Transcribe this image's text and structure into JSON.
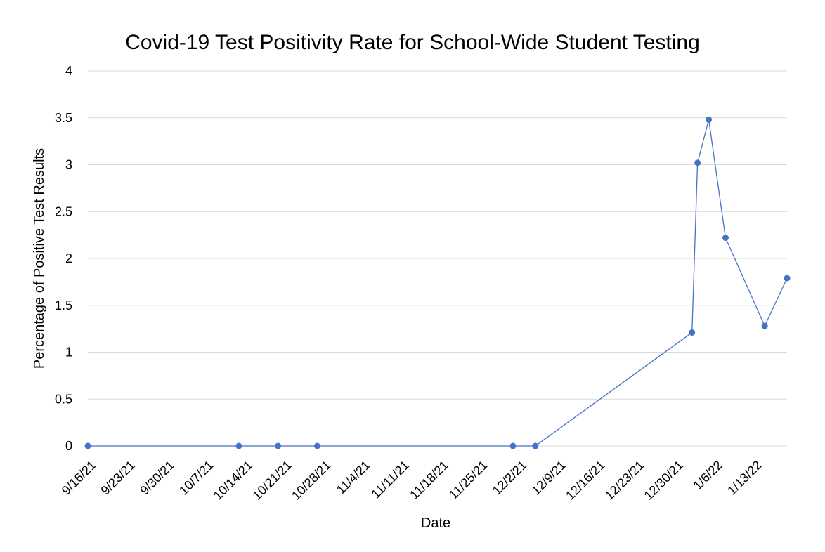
{
  "chart_data": {
    "type": "line",
    "title": "Covid-19 Test Positivity Rate for School-Wide Student Testing",
    "xlabel": "Date",
    "ylabel": "Percentage of Positive Test Results",
    "xlim": [
      "2021-09-16",
      "2022-01-19"
    ],
    "ylim": [
      0,
      4
    ],
    "y_ticks": [
      "0",
      "0.5",
      "1",
      "1.5",
      "2",
      "2.5",
      "3",
      "3.5",
      "4"
    ],
    "x_ticks": [
      {
        "date": "2021-09-16",
        "label": "9/16/21"
      },
      {
        "date": "2021-09-23",
        "label": "9/23/21"
      },
      {
        "date": "2021-09-30",
        "label": "9/30/21"
      },
      {
        "date": "2021-10-07",
        "label": "10/7/21"
      },
      {
        "date": "2021-10-14",
        "label": "10/14/21"
      },
      {
        "date": "2021-10-21",
        "label": "10/21/21"
      },
      {
        "date": "2021-10-28",
        "label": "10/28/21"
      },
      {
        "date": "2021-11-04",
        "label": "11/4/21"
      },
      {
        "date": "2021-11-11",
        "label": "11/11/21"
      },
      {
        "date": "2021-11-18",
        "label": "11/18/21"
      },
      {
        "date": "2021-11-25",
        "label": "11/25/21"
      },
      {
        "date": "2021-12-02",
        "label": "12/2/21"
      },
      {
        "date": "2021-12-09",
        "label": "12/9/21"
      },
      {
        "date": "2021-12-16",
        "label": "12/16/21"
      },
      {
        "date": "2021-12-23",
        "label": "12/23/21"
      },
      {
        "date": "2021-12-30",
        "label": "12/30/21"
      },
      {
        "date": "2022-01-06",
        "label": "1/6/22"
      },
      {
        "date": "2022-01-13",
        "label": "1/13/22"
      }
    ],
    "grid": true,
    "legend": "none",
    "color": "#4472C4",
    "series": [
      {
        "points": [
          {
            "x": "2021-09-16",
            "y": 0
          },
          {
            "x": "2021-10-13",
            "y": 0
          },
          {
            "x": "2021-10-20",
            "y": 0
          },
          {
            "x": "2021-10-27",
            "y": 0
          },
          {
            "x": "2021-12-01",
            "y": 0
          },
          {
            "x": "2021-12-05",
            "y": 0
          },
          {
            "x": "2022-01-02",
            "y": 1.21
          },
          {
            "x": "2022-01-03",
            "y": 3.02
          },
          {
            "x": "2022-01-05",
            "y": 3.48
          },
          {
            "x": "2022-01-08",
            "y": 2.22
          },
          {
            "x": "2022-01-15",
            "y": 1.28
          },
          {
            "x": "2022-01-19",
            "y": 1.79
          }
        ]
      }
    ]
  }
}
